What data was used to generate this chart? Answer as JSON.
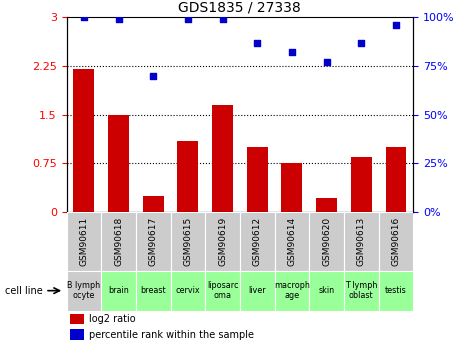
{
  "title": "GDS1835 / 27338",
  "gsm_labels": [
    "GSM90611",
    "GSM90618",
    "GSM90617",
    "GSM90615",
    "GSM90619",
    "GSM90612",
    "GSM90614",
    "GSM90620",
    "GSM90613",
    "GSM90616"
  ],
  "cell_labels": [
    "B lymph\nocyte",
    "brain",
    "breast",
    "cervix",
    "liposarc\noma",
    "liver",
    "macroph\nage",
    "skin",
    "T lymph\noblast",
    "testis"
  ],
  "cell_bg_colors": [
    "#cccccc",
    "#99ff99",
    "#99ff99",
    "#99ff99",
    "#99ff99",
    "#99ff99",
    "#99ff99",
    "#99ff99",
    "#99ff99",
    "#99ff99"
  ],
  "gsm_bg_color": "#cccccc",
  "log2_ratio": [
    2.2,
    1.5,
    0.25,
    1.1,
    1.65,
    1.0,
    0.75,
    0.22,
    0.85,
    1.0
  ],
  "percentile_rank": [
    100,
    99,
    70,
    99,
    99,
    87,
    82,
    77,
    87,
    96
  ],
  "bar_color": "#cc0000",
  "scatter_color": "#0000cc",
  "plot_bg": "#ffffff",
  "ylim_left": [
    0,
    3
  ],
  "ylim_right": [
    0,
    100
  ],
  "yticks_left": [
    0,
    0.75,
    1.5,
    2.25,
    3
  ],
  "ytick_labels_left": [
    "0",
    "0.75",
    "1.5",
    "2.25",
    "3"
  ],
  "yticks_right": [
    0,
    25,
    50,
    75,
    100
  ],
  "ytick_labels_right": [
    "0%",
    "25%",
    "50%",
    "75%",
    "100%"
  ],
  "hlines": [
    0.75,
    1.5,
    2.25
  ],
  "bg_color": "#ffffff",
  "legend_red_label": "log2 ratio",
  "legend_blue_label": "percentile rank within the sample",
  "cell_line_label": "cell line"
}
